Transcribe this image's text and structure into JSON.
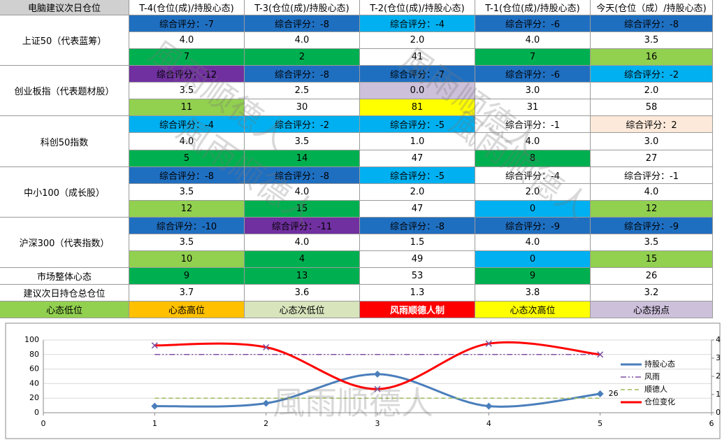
{
  "table": {
    "header": [
      "电脑建议次日仓位",
      "T-4(仓位(成)/持股心态)",
      "T-3(仓位(成)/持股心态)",
      "T-2(仓位(成)/持股心态)",
      "T-1(仓位(成)/持股心态)",
      "今天(仓位（成）/持股心态)"
    ],
    "groups": [
      {
        "name": "上证50（代表蓝筹）",
        "rows": [
          [
            [
              "综合评分：-7",
              "#1f6fc1"
            ],
            [
              "综合评分：-8",
              "#1f6fc1"
            ],
            [
              "综合评分：-4",
              "#00b0f0"
            ],
            [
              "综合评分：-6",
              "#1f6fc1"
            ],
            [
              "综合评分：-8",
              "#1f6fc1"
            ]
          ],
          [
            [
              "4.0",
              "#ffffff"
            ],
            [
              "4.0",
              "#ffffff"
            ],
            [
              "2.0",
              "#ffffff"
            ],
            [
              "4.0",
              "#ffffff"
            ],
            [
              "3.5",
              "#ffffff"
            ]
          ],
          [
            [
              "7",
              "#00b050"
            ],
            [
              "2",
              "#00b050"
            ],
            [
              "41",
              "#ffffff"
            ],
            [
              "7",
              "#00b050"
            ],
            [
              "16",
              "#92d050"
            ]
          ]
        ]
      },
      {
        "name": "创业板指（代表题材股）",
        "rows": [
          [
            [
              "综合评分：-12",
              "#7030a0"
            ],
            [
              "综合评分：-8",
              "#1f6fc1"
            ],
            [
              "综合评分：-7",
              "#1f6fc1"
            ],
            [
              "综合评分：-6",
              "#1f6fc1"
            ],
            [
              "综合评分：-2",
              "#00b0f0"
            ]
          ],
          [
            [
              "3.5",
              "#ffffff"
            ],
            [
              "2.5",
              "#ffffff"
            ],
            [
              "0.0",
              "#ccc0da"
            ],
            [
              "3.0",
              "#ffffff"
            ],
            [
              "2.0",
              "#ffffff"
            ]
          ],
          [
            [
              "11",
              "#92d050"
            ],
            [
              "30",
              "#ffffff"
            ],
            [
              "81",
              "#ffff00"
            ],
            [
              "31",
              "#ffffff"
            ],
            [
              "58",
              "#ffffff"
            ]
          ]
        ]
      },
      {
        "name": "科创50指数",
        "rows": [
          [
            [
              "综合评分：-4",
              "#00b0f0"
            ],
            [
              "综合评分：-2",
              "#00b0f0"
            ],
            [
              "综合评分：-5",
              "#00b0f0"
            ],
            [
              "综合评分：-1",
              "#ffffff"
            ],
            [
              "综合评分：2",
              "#fde9d9"
            ]
          ],
          [
            [
              "4.0",
              "#ffffff"
            ],
            [
              "3.5",
              "#ffffff"
            ],
            [
              "1.0",
              "#ffffff"
            ],
            [
              "4.0",
              "#ffffff"
            ],
            [
              "3.0",
              "#ffffff"
            ]
          ],
          [
            [
              "5",
              "#00b050"
            ],
            [
              "14",
              "#00b050"
            ],
            [
              "47",
              "#ffffff"
            ],
            [
              "8",
              "#00b050"
            ],
            [
              "27",
              "#ffffff"
            ]
          ]
        ]
      },
      {
        "name": "中小100（成长股）",
        "rows": [
          [
            [
              "综合评分：-8",
              "#1f6fc1"
            ],
            [
              "综合评分：-8",
              "#1f6fc1"
            ],
            [
              "综合评分：-5",
              "#00b0f0"
            ],
            [
              "综合评分：-4",
              "#ffffff"
            ],
            [
              "综合评分：-1",
              "#ffffff"
            ]
          ],
          [
            [
              "3.5",
              "#ffffff"
            ],
            [
              "4.0",
              "#ffffff"
            ],
            [
              "2.0",
              "#ffffff"
            ],
            [
              "2.0",
              "#ffffff"
            ],
            [
              "4.0",
              "#ffffff"
            ]
          ],
          [
            [
              "12",
              "#92d050"
            ],
            [
              "15",
              "#00b050"
            ],
            [
              "47",
              "#ffffff"
            ],
            [
              "0",
              "#00b0f0"
            ],
            [
              "12",
              "#92d050"
            ]
          ]
        ]
      },
      {
        "name": "沪深300（代表指数）",
        "rows": [
          [
            [
              "综合评分：-10",
              "#1f6fc1"
            ],
            [
              "综合评分：-11",
              "#7030a0"
            ],
            [
              "综合评分：-8",
              "#1f6fc1"
            ],
            [
              "综合评分：-9",
              "#1f6fc1"
            ],
            [
              "综合评分：-9",
              "#1f6fc1"
            ]
          ],
          [
            [
              "3.5",
              "#ffffff"
            ],
            [
              "4.0",
              "#ffffff"
            ],
            [
              "1.5",
              "#ffffff"
            ],
            [
              "4.0",
              "#ffffff"
            ],
            [
              "3.5",
              "#ffffff"
            ]
          ],
          [
            [
              "10",
              "#92d050"
            ],
            [
              "4",
              "#00b050"
            ],
            [
              "49",
              "#ffffff"
            ],
            [
              "0",
              "#00b0f0"
            ],
            [
              "15",
              "#92d050"
            ]
          ]
        ]
      }
    ],
    "summary": [
      {
        "name": "市场整体心态",
        "cells": [
          [
            "9",
            "#00b050"
          ],
          [
            "13",
            "#00b050"
          ],
          [
            "53",
            "#ffffff"
          ],
          [
            "9",
            "#00b050"
          ],
          [
            "26",
            "#ffffff"
          ]
        ]
      },
      {
        "name": "建议次日持仓总仓位",
        "cells": [
          [
            "3.7",
            "#ffffff"
          ],
          [
            "3.6",
            "#ffffff"
          ],
          [
            "1.3",
            "#ffffff"
          ],
          [
            "3.8",
            "#ffffff"
          ],
          [
            "3.2",
            "#ffffff"
          ]
        ]
      }
    ],
    "legend": [
      [
        "心态低位",
        "#92d050"
      ],
      [
        "心态高位",
        "#ffc000"
      ],
      [
        "心态次低位",
        "#d8e4bc"
      ],
      [
        "风雨顺德人制",
        "#ff0000"
      ],
      [
        "心态次高位",
        "#ffff00"
      ],
      [
        "心态拐点",
        "#ccc0da"
      ]
    ]
  },
  "watermark": "風雨顺德人",
  "chart_data": {
    "type": "line",
    "x": [
      1,
      2,
      3,
      4,
      5
    ],
    "xlim": [
      0,
      6
    ],
    "xticks": [
      0,
      1,
      2,
      3,
      4,
      5,
      6
    ],
    "ylim": [
      0,
      100
    ],
    "yticks": [
      0,
      20,
      40,
      60,
      80,
      100
    ],
    "y2lim": [
      0,
      4
    ],
    "y2ticks": [
      0,
      1,
      2,
      3,
      4
    ],
    "grid": true,
    "series": [
      {
        "name": "持股心态",
        "color": "#4a7ebb",
        "values": [
          9,
          13,
          53,
          9,
          26
        ],
        "marker": "diamond"
      },
      {
        "name": "风雨",
        "color": "#7f4fa0",
        "values": [
          80,
          80,
          80,
          80,
          80
        ],
        "dash": "8 3 2 3 2 3"
      },
      {
        "name": "顺德人",
        "color": "#9bbb59",
        "values": [
          20,
          20,
          20,
          20,
          20
        ],
        "dash": "6 4"
      },
      {
        "name": "仓位变化",
        "color": "#ff0000",
        "values": [
          3.7,
          3.6,
          1.3,
          3.8,
          3.2
        ],
        "axis": "y2",
        "marker": "x"
      }
    ]
  }
}
